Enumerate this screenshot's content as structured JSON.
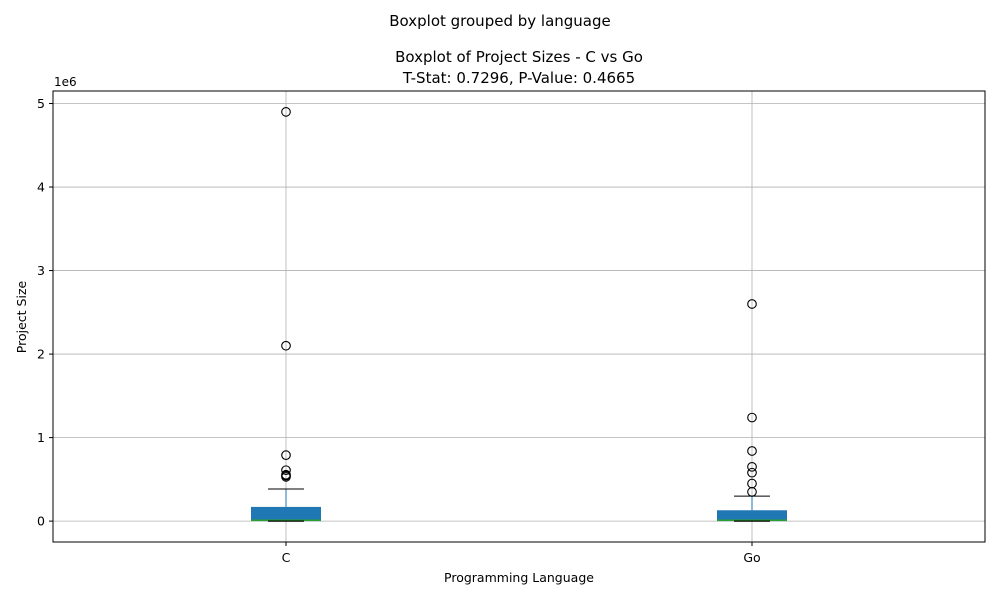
{
  "chart_data": {
    "type": "boxplot",
    "suptitle": "Boxplot grouped by language",
    "title_lines": [
      "Boxplot of Project Sizes - C vs Go",
      "T-Stat: 0.7296, P-Value: 0.4665"
    ],
    "xlabel": "Programming Language",
    "ylabel": "Project Size",
    "y_offset_label": "1e6",
    "y_tick_values": [
      0,
      1,
      2,
      3,
      4,
      5
    ],
    "y_scale": 1000000,
    "ylim": [
      -250000,
      5150000
    ],
    "grid": true,
    "box_color": "#1f77b4",
    "median_color": "#2ca02c",
    "categories": [
      "C",
      "Go"
    ],
    "groups": [
      {
        "name": "C",
        "whisker_low": 0,
        "q1": 0,
        "median": 10000,
        "q3": 170000,
        "whisker_high": 385000,
        "outliers": [
          530000,
          545000,
          555000,
          610000,
          790000,
          2100000,
          4900000
        ]
      },
      {
        "name": "Go",
        "whisker_low": 0,
        "q1": 0,
        "median": 10000,
        "q3": 130000,
        "whisker_high": 300000,
        "outliers": [
          350000,
          450000,
          580000,
          650000,
          840000,
          1240000,
          2600000
        ]
      }
    ]
  }
}
